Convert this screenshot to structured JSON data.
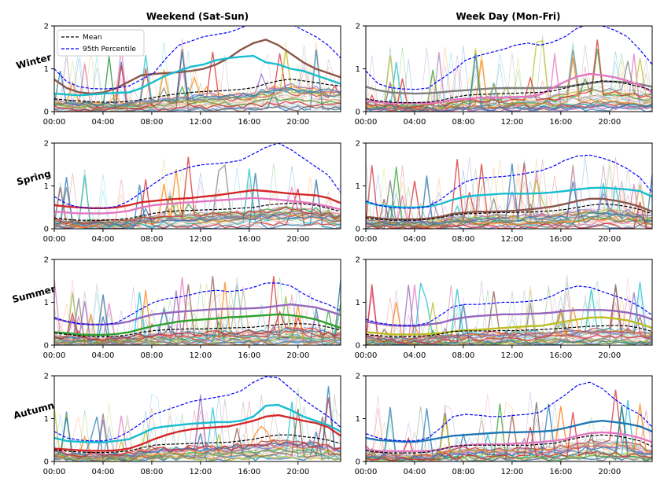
{
  "figure": {
    "column_titles": [
      "Weekend (Sat-Sun)",
      "Week Day (Mon-Fri)"
    ],
    "row_labels": [
      "Winter",
      "Spring",
      "Summer",
      "Autumn"
    ],
    "legend": {
      "mean": "Mean",
      "p95": "95th Percentile"
    },
    "colors": {
      "mean": "#000000",
      "p95": "#0000ff"
    }
  },
  "chart_data": {
    "type": "line",
    "x_ticks": [
      "00:00",
      "04:00",
      "08:00",
      "12:00",
      "16:00",
      "20:00"
    ],
    "y_ticks": [
      "0",
      "1",
      "2"
    ],
    "xlim": [
      "00:00",
      "23:30"
    ],
    "ylim": [
      0,
      2
    ],
    "note_series": "Summary lines per panel sampled every hour (00:00..23:00), plus many thin individual household load curves rendered faintly.",
    "panels": [
      {
        "row": "Winter",
        "col": "Weekend (Sat-Sun)",
        "mean": [
          0.3,
          0.27,
          0.25,
          0.23,
          0.22,
          0.22,
          0.24,
          0.28,
          0.33,
          0.38,
          0.42,
          0.45,
          0.47,
          0.48,
          0.5,
          0.52,
          0.56,
          0.65,
          0.72,
          0.76,
          0.72,
          0.68,
          0.63,
          0.6
        ],
        "p95": [
          1.0,
          0.7,
          0.58,
          0.54,
          0.53,
          0.55,
          0.6,
          0.75,
          0.9,
          1.25,
          1.55,
          1.65,
          1.75,
          1.8,
          1.85,
          1.95,
          2.1,
          2.2,
          2.25,
          2.05,
          1.9,
          1.75,
          1.55,
          1.25
        ],
        "highlights": [
          {
            "color": "#8c564b",
            "values": [
              0.75,
              0.55,
              0.45,
              0.42,
              0.45,
              0.55,
              0.7,
              0.85,
              0.88,
              0.9,
              0.92,
              0.95,
              1.0,
              1.1,
              1.25,
              1.45,
              1.6,
              1.68,
              1.55,
              1.35,
              1.15,
              1.0,
              0.9,
              0.8
            ]
          },
          {
            "color": "#17becf",
            "values": [
              0.42,
              0.4,
              0.38,
              0.4,
              0.42,
              0.44,
              0.45,
              0.55,
              0.7,
              0.85,
              0.95,
              1.05,
              1.1,
              1.2,
              1.25,
              1.28,
              1.3,
              1.15,
              1.1,
              1.0,
              0.95,
              0.85,
              0.75,
              0.65
            ]
          }
        ]
      },
      {
        "row": "Winter",
        "col": "Week Day (Mon-Fri)",
        "mean": [
          0.3,
          0.25,
          0.22,
          0.21,
          0.21,
          0.22,
          0.26,
          0.33,
          0.38,
          0.4,
          0.41,
          0.42,
          0.43,
          0.44,
          0.45,
          0.48,
          0.55,
          0.62,
          0.68,
          0.72,
          0.7,
          0.65,
          0.58,
          0.5
        ],
        "p95": [
          0.95,
          0.65,
          0.56,
          0.53,
          0.52,
          0.55,
          0.75,
          0.95,
          1.2,
          1.3,
          1.38,
          1.45,
          1.55,
          1.6,
          1.55,
          1.62,
          1.75,
          1.95,
          2.05,
          2.0,
          1.9,
          1.75,
          1.45,
          1.1
        ],
        "highlights": [
          {
            "color": "#7f7f7f",
            "values": [
              0.58,
              0.5,
              0.45,
              0.43,
              0.42,
              0.43,
              0.45,
              0.48,
              0.5,
              0.52,
              0.54,
              0.55,
              0.55,
              0.55,
              0.55,
              0.56,
              0.58,
              0.62,
              0.66,
              0.7,
              0.7,
              0.68,
              0.64,
              0.58
            ]
          },
          {
            "color": "#e377c2",
            "values": [
              0.25,
              0.22,
              0.2,
              0.2,
              0.2,
              0.2,
              0.22,
              0.28,
              0.3,
              0.32,
              0.33,
              0.33,
              0.34,
              0.35,
              0.4,
              0.55,
              0.7,
              0.82,
              0.88,
              0.85,
              0.8,
              0.72,
              0.62,
              0.45
            ]
          }
        ]
      },
      {
        "row": "Spring",
        "col": "Weekend (Sat-Sun)",
        "mean": [
          0.25,
          0.22,
          0.2,
          0.2,
          0.2,
          0.21,
          0.24,
          0.3,
          0.36,
          0.4,
          0.42,
          0.43,
          0.44,
          0.45,
          0.46,
          0.48,
          0.5,
          0.55,
          0.58,
          0.6,
          0.58,
          0.55,
          0.48,
          0.4
        ],
        "p95": [
          0.75,
          0.58,
          0.5,
          0.48,
          0.48,
          0.52,
          0.65,
          0.85,
          1.05,
          1.25,
          1.35,
          1.45,
          1.5,
          1.52,
          1.55,
          1.6,
          1.75,
          1.9,
          2.0,
          1.85,
          1.65,
          1.45,
          1.25,
          0.85
        ],
        "highlights": [
          {
            "color": "#d62728",
            "values": [
              0.55,
              0.52,
              0.5,
              0.48,
              0.48,
              0.5,
              0.55,
              0.62,
              0.65,
              0.68,
              0.7,
              0.72,
              0.75,
              0.78,
              0.82,
              0.86,
              0.9,
              0.88,
              0.85,
              0.82,
              0.8,
              0.78,
              0.72,
              0.6
            ]
          },
          {
            "color": "#e377c2",
            "values": [
              0.4,
              0.38,
              0.36,
              0.36,
              0.36,
              0.38,
              0.42,
              0.5,
              0.55,
              0.58,
              0.6,
              0.62,
              0.64,
              0.66,
              0.68,
              0.7,
              0.72,
              0.7,
              0.68,
              0.65,
              0.62,
              0.58,
              0.52,
              0.45
            ]
          }
        ]
      },
      {
        "row": "Spring",
        "col": "Week Day (Mon-Fri)",
        "mean": [
          0.25,
          0.22,
          0.2,
          0.2,
          0.2,
          0.22,
          0.26,
          0.32,
          0.35,
          0.36,
          0.37,
          0.38,
          0.38,
          0.39,
          0.4,
          0.42,
          0.45,
          0.5,
          0.55,
          0.58,
          0.56,
          0.52,
          0.45,
          0.35
        ],
        "p95": [
          0.65,
          0.55,
          0.5,
          0.48,
          0.48,
          0.52,
          0.68,
          0.9,
          1.1,
          1.18,
          1.2,
          1.22,
          1.25,
          1.3,
          1.35,
          1.45,
          1.6,
          1.7,
          1.72,
          1.65,
          1.55,
          1.4,
          1.2,
          0.85
        ],
        "highlights": [
          {
            "color": "#17becf",
            "values": [
              0.62,
              0.55,
              0.52,
              0.5,
              0.5,
              0.52,
              0.58,
              0.68,
              0.75,
              0.78,
              0.8,
              0.82,
              0.82,
              0.82,
              0.83,
              0.85,
              0.88,
              0.92,
              0.95,
              0.96,
              0.94,
              0.92,
              0.88,
              0.75
            ]
          },
          {
            "color": "#8c564b",
            "values": [
              0.28,
              0.25,
              0.22,
              0.22,
              0.22,
              0.24,
              0.28,
              0.35,
              0.38,
              0.4,
              0.4,
              0.41,
              0.42,
              0.45,
              0.48,
              0.52,
              0.58,
              0.65,
              0.7,
              0.7,
              0.66,
              0.6,
              0.52,
              0.4
            ]
          }
        ]
      },
      {
        "row": "Summer",
        "col": "Weekend (Sat-Sun)",
        "mean": [
          0.28,
          0.25,
          0.22,
          0.2,
          0.2,
          0.21,
          0.24,
          0.3,
          0.34,
          0.36,
          0.37,
          0.38,
          0.38,
          0.39,
          0.4,
          0.41,
          0.42,
          0.45,
          0.48,
          0.5,
          0.5,
          0.48,
          0.42,
          0.35
        ],
        "p95": [
          0.65,
          0.55,
          0.5,
          0.48,
          0.48,
          0.52,
          0.68,
          0.85,
          1.0,
          1.08,
          1.12,
          1.18,
          1.25,
          1.28,
          1.25,
          1.28,
          1.35,
          1.45,
          1.45,
          1.38,
          1.2,
          1.05,
          0.95,
          0.8
        ],
        "highlights": [
          {
            "color": "#9467bd",
            "values": [
              0.62,
              0.55,
              0.5,
              0.48,
              0.48,
              0.5,
              0.55,
              0.65,
              0.72,
              0.75,
              0.78,
              0.8,
              0.82,
              0.84,
              0.85,
              0.85,
              0.86,
              0.88,
              0.92,
              0.95,
              0.92,
              0.88,
              0.8,
              0.7
            ]
          },
          {
            "color": "#2ca02c",
            "values": [
              0.3,
              0.28,
              0.25,
              0.24,
              0.24,
              0.26,
              0.3,
              0.38,
              0.45,
              0.5,
              0.55,
              0.58,
              0.6,
              0.62,
              0.65,
              0.66,
              0.68,
              0.7,
              0.72,
              0.7,
              0.66,
              0.6,
              0.5,
              0.4
            ]
          }
        ]
      },
      {
        "row": "Summer",
        "col": "Week Day (Mon-Fri)",
        "mean": [
          0.25,
          0.22,
          0.2,
          0.2,
          0.2,
          0.22,
          0.26,
          0.32,
          0.33,
          0.33,
          0.33,
          0.34,
          0.34,
          0.35,
          0.36,
          0.38,
          0.4,
          0.42,
          0.44,
          0.45,
          0.46,
          0.45,
          0.4,
          0.32
        ],
        "p95": [
          0.6,
          0.52,
          0.48,
          0.46,
          0.46,
          0.52,
          0.7,
          0.9,
          0.95,
          0.95,
          0.97,
          1.0,
          1.0,
          1.02,
          1.05,
          1.15,
          1.3,
          1.38,
          1.35,
          1.25,
          1.15,
          1.05,
          0.9,
          0.7
        ],
        "highlights": [
          {
            "color": "#9467bd",
            "values": [
              0.55,
              0.5,
              0.46,
              0.45,
              0.45,
              0.48,
              0.52,
              0.6,
              0.65,
              0.68,
              0.7,
              0.72,
              0.72,
              0.73,
              0.74,
              0.76,
              0.8,
              0.82,
              0.82,
              0.82,
              0.8,
              0.76,
              0.7,
              0.6
            ]
          },
          {
            "color": "#bcbd22",
            "values": [
              0.3,
              0.28,
              0.25,
              0.25,
              0.25,
              0.26,
              0.28,
              0.32,
              0.35,
              0.36,
              0.38,
              0.4,
              0.42,
              0.44,
              0.45,
              0.5,
              0.55,
              0.6,
              0.64,
              0.65,
              0.62,
              0.58,
              0.5,
              0.4
            ]
          }
        ]
      },
      {
        "row": "Autumn",
        "col": "Weekend (Sat-Sun)",
        "mean": [
          0.28,
          0.24,
          0.22,
          0.21,
          0.21,
          0.22,
          0.25,
          0.32,
          0.38,
          0.4,
          0.41,
          0.42,
          0.43,
          0.44,
          0.45,
          0.48,
          0.52,
          0.58,
          0.62,
          0.62,
          0.58,
          0.55,
          0.5,
          0.42
        ],
        "p95": [
          0.7,
          0.55,
          0.5,
          0.48,
          0.48,
          0.55,
          0.7,
          0.9,
          1.1,
          1.2,
          1.3,
          1.4,
          1.45,
          1.5,
          1.55,
          1.65,
          1.85,
          1.98,
          1.95,
          1.7,
          1.45,
          1.25,
          1.05,
          0.8
        ],
        "highlights": [
          {
            "color": "#17becf",
            "values": [
              0.55,
              0.48,
              0.46,
              0.45,
              0.45,
              0.48,
              0.52,
              0.65,
              0.78,
              0.82,
              0.85,
              0.88,
              0.9,
              0.92,
              0.92,
              0.95,
              1.05,
              1.3,
              1.32,
              1.2,
              1.05,
              0.95,
              0.85,
              0.7
            ]
          },
          {
            "color": "#d62728",
            "values": [
              0.3,
              0.28,
              0.26,
              0.25,
              0.25,
              0.26,
              0.3,
              0.4,
              0.52,
              0.62,
              0.7,
              0.75,
              0.78,
              0.8,
              0.82,
              0.88,
              0.95,
              1.05,
              1.08,
              1.02,
              0.95,
              0.9,
              0.8,
              0.6
            ]
          }
        ]
      },
      {
        "row": "Autumn",
        "col": "Week Day (Mon-Fri)",
        "mean": [
          0.25,
          0.22,
          0.2,
          0.2,
          0.2,
          0.22,
          0.28,
          0.35,
          0.38,
          0.38,
          0.38,
          0.38,
          0.38,
          0.38,
          0.4,
          0.42,
          0.48,
          0.55,
          0.6,
          0.62,
          0.6,
          0.55,
          0.48,
          0.35
        ],
        "p95": [
          0.65,
          0.55,
          0.5,
          0.48,
          0.48,
          0.55,
          0.78,
          1.05,
          1.1,
          1.08,
          1.05,
          1.05,
          1.08,
          1.1,
          1.15,
          1.35,
          1.55,
          1.78,
          1.85,
          1.7,
          1.45,
          1.25,
          1.1,
          0.8
        ],
        "highlights": [
          {
            "color": "#1f77b4",
            "values": [
              0.55,
              0.5,
              0.48,
              0.46,
              0.46,
              0.5,
              0.55,
              0.6,
              0.62,
              0.64,
              0.66,
              0.68,
              0.68,
              0.69,
              0.7,
              0.72,
              0.78,
              0.85,
              0.92,
              0.95,
              0.92,
              0.88,
              0.82,
              0.7
            ]
          },
          {
            "color": "#e377c2",
            "values": [
              0.28,
              0.25,
              0.24,
              0.24,
              0.24,
              0.25,
              0.28,
              0.35,
              0.38,
              0.4,
              0.4,
              0.4,
              0.42,
              0.43,
              0.45,
              0.48,
              0.52,
              0.6,
              0.66,
              0.68,
              0.66,
              0.62,
              0.55,
              0.45
            ]
          }
        ]
      }
    ]
  }
}
